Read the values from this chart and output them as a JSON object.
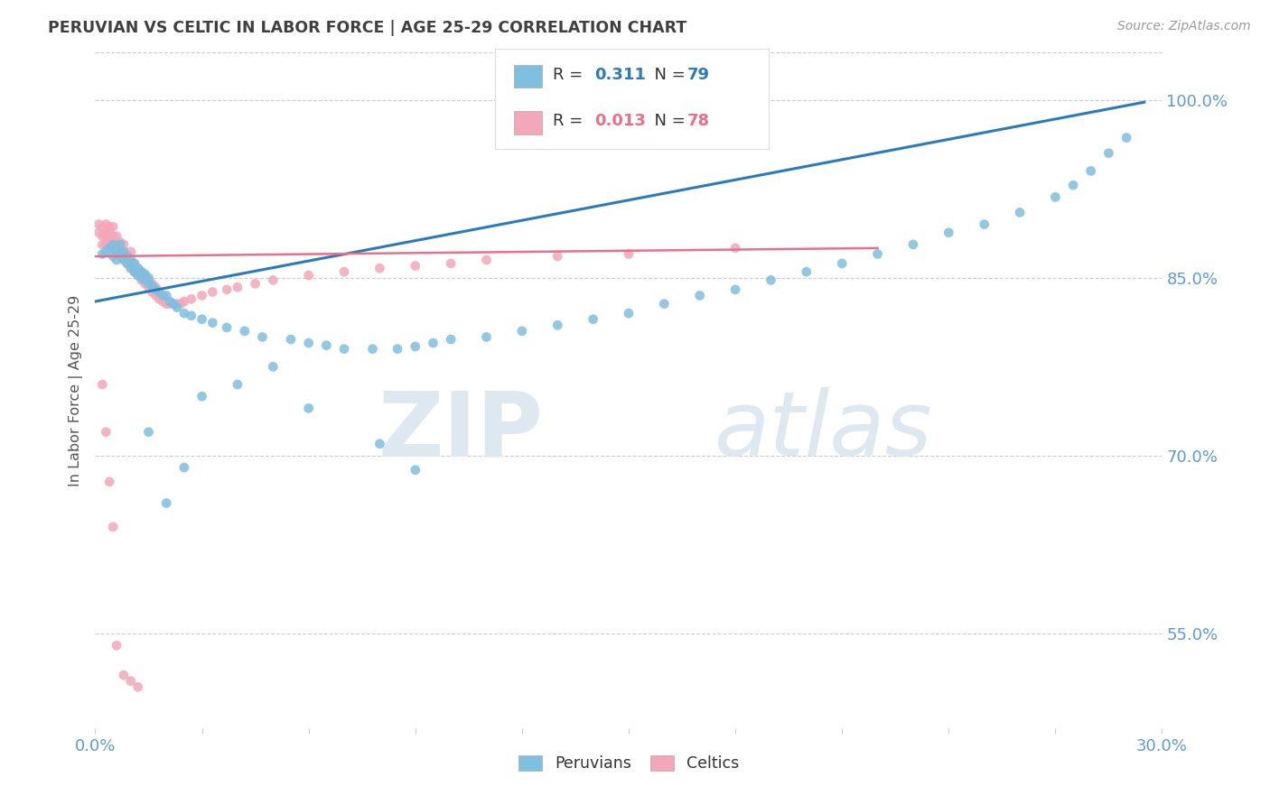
{
  "title": "PERUVIAN VS CELTIC IN LABOR FORCE | AGE 25-29 CORRELATION CHART",
  "source_text": "Source: ZipAtlas.com",
  "ylabel": "In Labor Force | Age 25-29",
  "ytick_labels": [
    "55.0%",
    "70.0%",
    "85.0%",
    "100.0%"
  ],
  "ytick_values": [
    0.55,
    0.7,
    0.85,
    1.0
  ],
  "xlim": [
    0.0,
    0.3
  ],
  "ylim": [
    0.47,
    1.04
  ],
  "legend_peruvian_R": "0.311",
  "legend_peruvian_N": "79",
  "legend_celtic_R": "0.013",
  "legend_celtic_N": "78",
  "peruvian_color": "#7fbfdf",
  "celtic_color": "#f4a7b9",
  "peruvian_line_color": "#2b7bba",
  "celtic_line_color": "#e8708a",
  "peru_trend_x0": 0.0,
  "peru_trend_y0": 0.83,
  "peru_trend_x1": 0.295,
  "peru_trend_y1": 0.998,
  "celtic_trend_x0": 0.0,
  "celtic_trend_y0": 0.868,
  "celtic_trend_x1": 0.22,
  "celtic_trend_y1": 0.875,
  "peru_x": [
    0.002,
    0.003,
    0.004,
    0.005,
    0.005,
    0.006,
    0.006,
    0.007,
    0.007,
    0.008,
    0.008,
    0.009,
    0.009,
    0.01,
    0.01,
    0.011,
    0.011,
    0.012,
    0.012,
    0.013,
    0.013,
    0.014,
    0.014,
    0.015,
    0.015,
    0.016,
    0.017,
    0.018,
    0.019,
    0.02,
    0.021,
    0.022,
    0.023,
    0.025,
    0.027,
    0.03,
    0.033,
    0.037,
    0.042,
    0.047,
    0.055,
    0.06,
    0.065,
    0.07,
    0.078,
    0.085,
    0.09,
    0.095,
    0.1,
    0.11,
    0.12,
    0.13,
    0.14,
    0.15,
    0.16,
    0.17,
    0.18,
    0.19,
    0.2,
    0.21,
    0.22,
    0.23,
    0.24,
    0.25,
    0.26,
    0.27,
    0.275,
    0.28,
    0.285,
    0.29,
    0.015,
    0.02,
    0.025,
    0.03,
    0.04,
    0.05,
    0.06,
    0.08,
    0.09
  ],
  "peru_y": [
    0.87,
    0.872,
    0.875,
    0.868,
    0.878,
    0.865,
    0.873,
    0.87,
    0.878,
    0.865,
    0.872,
    0.862,
    0.868,
    0.858,
    0.865,
    0.855,
    0.862,
    0.852,
    0.858,
    0.85,
    0.855,
    0.848,
    0.853,
    0.845,
    0.85,
    0.843,
    0.84,
    0.838,
    0.835,
    0.835,
    0.83,
    0.828,
    0.825,
    0.82,
    0.818,
    0.815,
    0.812,
    0.808,
    0.805,
    0.8,
    0.798,
    0.795,
    0.793,
    0.79,
    0.79,
    0.79,
    0.792,
    0.795,
    0.798,
    0.8,
    0.805,
    0.81,
    0.815,
    0.82,
    0.828,
    0.835,
    0.84,
    0.848,
    0.855,
    0.862,
    0.87,
    0.878,
    0.888,
    0.895,
    0.905,
    0.918,
    0.928,
    0.94,
    0.955,
    0.968,
    0.72,
    0.66,
    0.69,
    0.75,
    0.76,
    0.775,
    0.74,
    0.71,
    0.688
  ],
  "celtic_x": [
    0.001,
    0.001,
    0.002,
    0.002,
    0.002,
    0.003,
    0.003,
    0.003,
    0.003,
    0.004,
    0.004,
    0.004,
    0.004,
    0.005,
    0.005,
    0.005,
    0.005,
    0.006,
    0.006,
    0.006,
    0.006,
    0.007,
    0.007,
    0.007,
    0.008,
    0.008,
    0.008,
    0.009,
    0.009,
    0.01,
    0.01,
    0.01,
    0.011,
    0.011,
    0.012,
    0.012,
    0.013,
    0.013,
    0.014,
    0.014,
    0.015,
    0.015,
    0.016,
    0.016,
    0.017,
    0.017,
    0.018,
    0.019,
    0.02,
    0.021,
    0.022,
    0.023,
    0.024,
    0.025,
    0.027,
    0.03,
    0.033,
    0.037,
    0.04,
    0.045,
    0.05,
    0.06,
    0.07,
    0.08,
    0.09,
    0.1,
    0.11,
    0.13,
    0.15,
    0.18,
    0.002,
    0.003,
    0.004,
    0.005,
    0.006,
    0.008,
    0.01,
    0.012
  ],
  "celtic_y": [
    0.888,
    0.895,
    0.885,
    0.892,
    0.878,
    0.885,
    0.878,
    0.888,
    0.895,
    0.882,
    0.888,
    0.878,
    0.893,
    0.878,
    0.885,
    0.893,
    0.875,
    0.872,
    0.878,
    0.885,
    0.87,
    0.868,
    0.875,
    0.88,
    0.865,
    0.872,
    0.878,
    0.862,
    0.868,
    0.858,
    0.865,
    0.872,
    0.855,
    0.862,
    0.852,
    0.858,
    0.848,
    0.855,
    0.845,
    0.852,
    0.842,
    0.848,
    0.838,
    0.845,
    0.835,
    0.842,
    0.832,
    0.83,
    0.828,
    0.828,
    0.828,
    0.828,
    0.828,
    0.83,
    0.832,
    0.835,
    0.838,
    0.84,
    0.842,
    0.845,
    0.848,
    0.852,
    0.855,
    0.858,
    0.86,
    0.862,
    0.865,
    0.868,
    0.87,
    0.875,
    0.76,
    0.72,
    0.678,
    0.64,
    0.54,
    0.515,
    0.51,
    0.505
  ]
}
